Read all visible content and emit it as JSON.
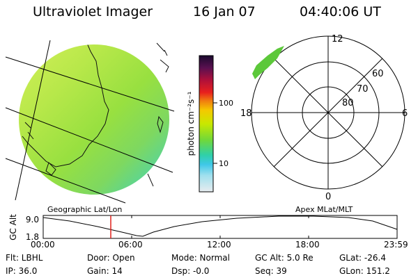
{
  "header": {
    "instrument": "Ultraviolet Imager",
    "date": "16 Jan 07",
    "time": "04:40:06 UT"
  },
  "colorbar": {
    "unit_label": "photon cm⁻²s⁻¹",
    "ticks": [
      "100",
      "10"
    ],
    "colors": [
      "#1a0a2e",
      "#5a1050",
      "#b0103a",
      "#e8201e",
      "#f07a10",
      "#f5c800",
      "#c9e800",
      "#70d83a",
      "#2fd0a8",
      "#3fc8e8",
      "#a0e0ee",
      "#e8ecef"
    ]
  },
  "geo_panel": {
    "label": "Geographic Lat/Lon",
    "aurora_colors": [
      "#d6f05a",
      "#b8e84a",
      "#98e040",
      "#7ed860",
      "#4ed4a8",
      "#46cce0"
    ]
  },
  "polar_panel": {
    "label": "Apex MLat/MLT",
    "mlt_labels": [
      "12",
      "18",
      "6",
      "0"
    ],
    "lat_labels": [
      "60",
      "70",
      "80"
    ],
    "aurora_color": "#5cc83a"
  },
  "altitude_plot": {
    "ylabel": "GC Alt",
    "yticks": [
      "9.0",
      "1.8"
    ],
    "xticks": [
      "00:00",
      "06:00",
      "12:00",
      "18:00",
      "23:59"
    ],
    "marker_color": "#e0201a"
  },
  "footer": {
    "flt": "Flt: LBHL",
    "ip": "IP: 36.0",
    "door": "Door: Open",
    "gain": "Gain: 14",
    "mode": "Mode: Normal",
    "dsp": "Dsp:   -0.0",
    "gc_alt": "GC Alt: 5.0 Re",
    "seq": "Seq: 39",
    "glat": "GLat: -26.4",
    "glon": "GLon: 151.2"
  }
}
